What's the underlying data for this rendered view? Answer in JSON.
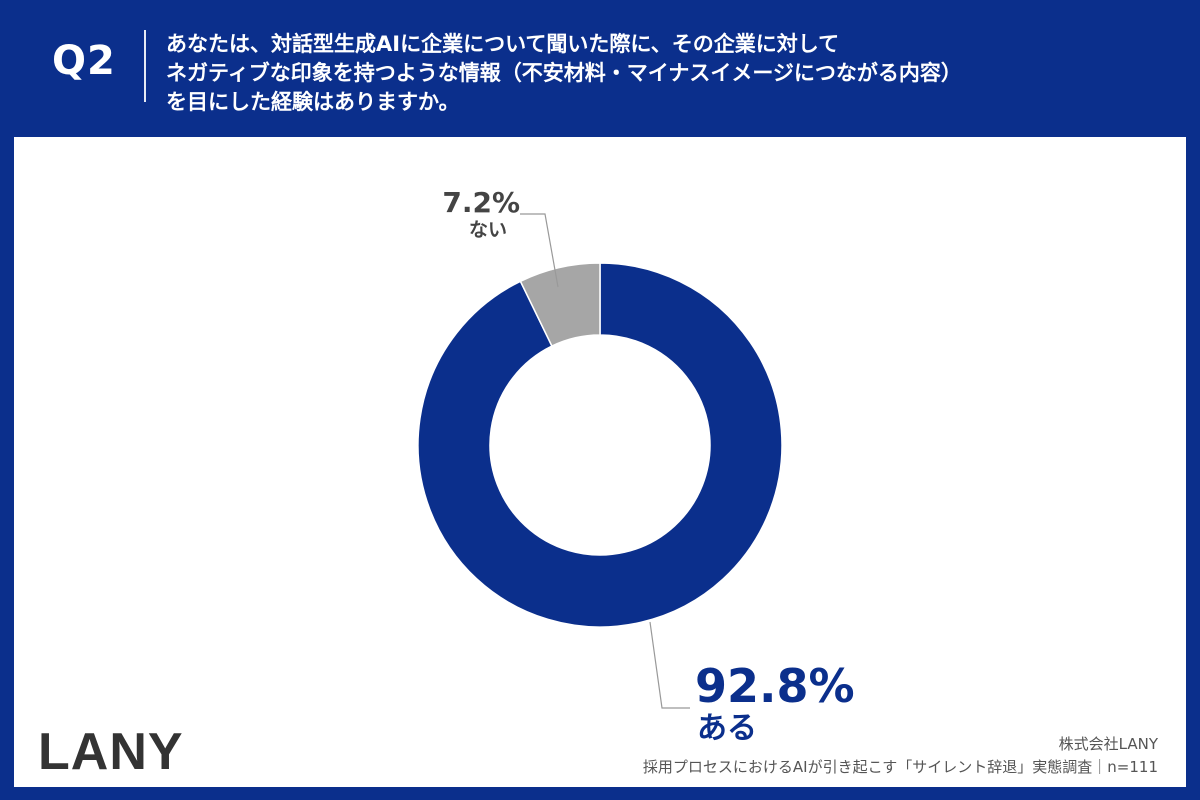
{
  "header": {
    "question_label": "Q2",
    "question_lines": [
      "あなたは、対話型生成AIに企業について聞いた際に、その企業に対して",
      "ネガティブな印象を持つような情報（不安材料・マイナスイメージにつながる内容）",
      "を目にした経験はありますか。"
    ]
  },
  "chart_data": {
    "type": "pie",
    "donut": true,
    "categories": [
      "ある",
      "ない"
    ],
    "values": [
      92.8,
      7.2
    ],
    "labels": [
      "92.8%",
      "7.2%"
    ],
    "colors": [
      "#0b2f8c",
      "#a6a6a6"
    ],
    "title": "",
    "unit": "%"
  },
  "branding": {
    "logo": "LANY"
  },
  "footer": {
    "company": "株式会社LANY",
    "source": "採用プロセスにおけるAIが引き起こす「サイレント辞退」実態調査｜n=111"
  }
}
